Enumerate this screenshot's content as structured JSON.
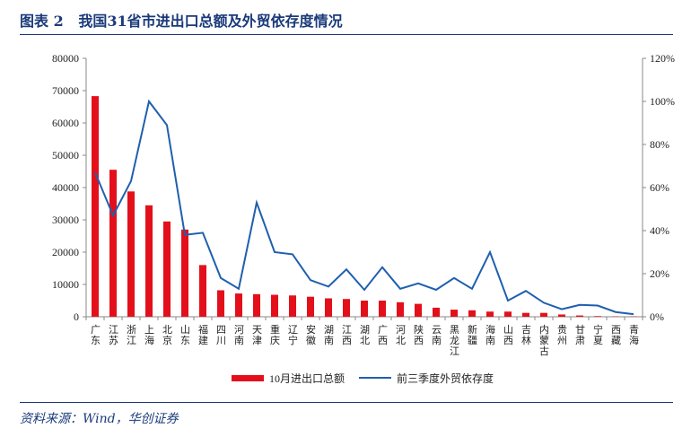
{
  "title": "图表 2   我国31省市进出口总额及外贸依存度情况",
  "source": "资料来源：Wind，华创证券",
  "chart_data": {
    "type": "bar+line",
    "categories": [
      "广东",
      "江苏",
      "浙江",
      "上海",
      "北京",
      "山东",
      "福建",
      "四川",
      "河南",
      "天津",
      "重庆",
      "辽宁",
      "安徽",
      "湖南",
      "江西",
      "湖北",
      "广西",
      "河北",
      "陕西",
      "云南",
      "黑龙江",
      "新疆",
      "海南",
      "山西",
      "吉林",
      "内蒙古",
      "贵州",
      "甘肃",
      "宁夏",
      "西藏",
      "青海"
    ],
    "series": [
      {
        "name": "10月进出口总额",
        "type": "bar",
        "axis": "left",
        "color": "#e3101b",
        "values": [
          68300,
          45500,
          38800,
          34500,
          29500,
          27000,
          16000,
          8200,
          7200,
          7000,
          6800,
          6600,
          6200,
          5700,
          5500,
          5000,
          5000,
          4500,
          4000,
          2800,
          2200,
          2000,
          1600,
          1600,
          1200,
          1200,
          700,
          400,
          200,
          100,
          100
        ]
      },
      {
        "name": "前三季度外贸依存度",
        "type": "line",
        "axis": "right",
        "color": "#1f5fae",
        "values": [
          67,
          47,
          63,
          100,
          89,
          38,
          39,
          18,
          13,
          53,
          30,
          29,
          17,
          14,
          22,
          12.5,
          23,
          13,
          15.5,
          12.5,
          18,
          13,
          30,
          7.5,
          12,
          6.5,
          3.5,
          5.5,
          5.2,
          2.2,
          1.2
        ]
      }
    ],
    "y_left": {
      "range": [
        0,
        80000
      ],
      "ticks": [
        "0",
        "10000",
        "20000",
        "30000",
        "40000",
        "50000",
        "60000",
        "70000",
        "80000"
      ]
    },
    "y_right": {
      "range": [
        0,
        120
      ],
      "ticks": [
        "0%",
        "20%",
        "40%",
        "60%",
        "80%",
        "100%",
        "120%"
      ]
    },
    "grid": false,
    "legend": "bottom"
  }
}
